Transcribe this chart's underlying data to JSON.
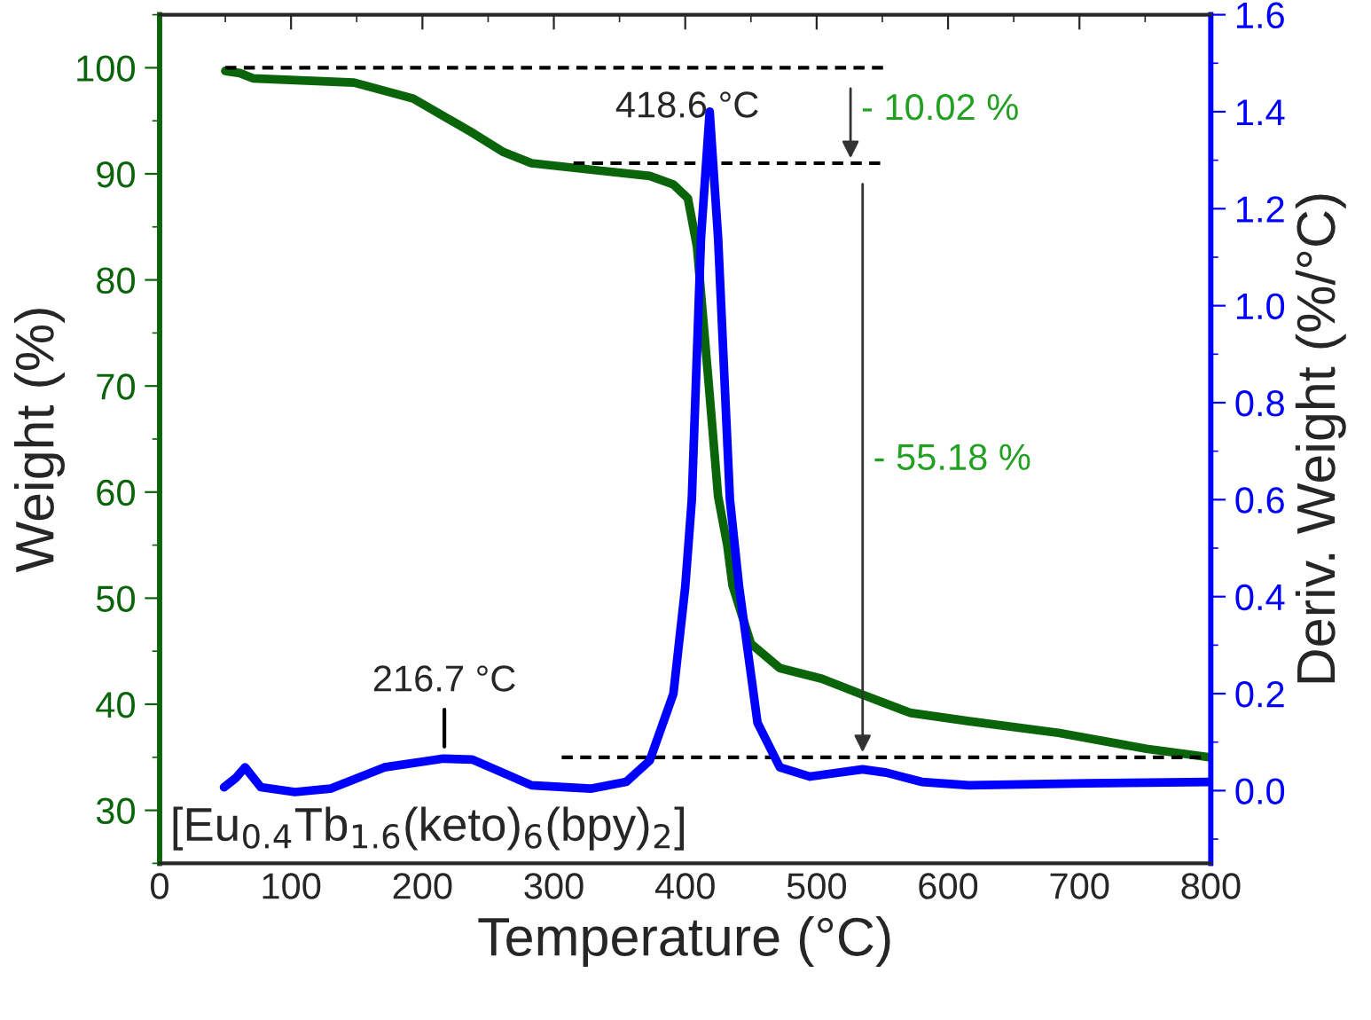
{
  "chart_data": {
    "type": "line",
    "xlabel": "Temperature (°C)",
    "ylabel": "Weight (%)",
    "y2label": "Deriv. Weight (%/°C)",
    "xlim": [
      0,
      800
    ],
    "xticks": [
      0,
      100,
      200,
      300,
      400,
      500,
      600,
      700,
      800
    ],
    "ylim": [
      25,
      105
    ],
    "yticks": [
      30,
      40,
      50,
      60,
      70,
      80,
      90,
      100
    ],
    "y2lim": [
      -0.15,
      1.6
    ],
    "y2ticks": [
      {
        "value": 0,
        "label": "0.0"
      },
      0.2,
      0.4,
      0.6,
      0.8,
      {
        "value": 1,
        "label": "1.0"
      },
      1.2,
      1.4,
      1.6
    ],
    "grid": false,
    "legend": false,
    "marker": "none",
    "series": [
      {
        "color": "#0a640a",
        "line_style": "solid",
        "x": [
          50,
          61,
          71,
          148,
          193,
          239,
          261,
          283,
          328,
          373,
          391,
          402,
          409,
          418,
          425,
          432,
          436,
          450,
          472,
          504,
          535,
          571,
          616,
          684,
          751,
          799
        ],
        "values": [
          99.7,
          99.5,
          99.0,
          98.6,
          97.1,
          93.8,
          92.1,
          91.0,
          90.4,
          89.8,
          89.0,
          87.7,
          83.1,
          70.0,
          59.6,
          55.0,
          51.2,
          45.7,
          43.4,
          42.4,
          40.9,
          39.2,
          38.4,
          37.3,
          35.8,
          35.0
        ]
      },
      {
        "color": "#0000ff",
        "line_style": "solid",
        "axis": "y2",
        "x": [
          49,
          58,
          65,
          77,
          103,
          130,
          171,
          216,
          238,
          261,
          283,
          328,
          355,
          373,
          391,
          400,
          405,
          412,
          418.6,
          425,
          434,
          441,
          455,
          472,
          495,
          535,
          553,
          580,
          616,
          706,
          799
        ],
        "values": [
          0.007,
          0.026,
          0.048,
          0.007,
          -0.003,
          0.004,
          0.048,
          0.066,
          0.064,
          0.037,
          0.011,
          0.004,
          0.018,
          0.062,
          0.2,
          0.42,
          0.6,
          1.14,
          1.4,
          1.14,
          0.6,
          0.42,
          0.14,
          0.048,
          0.029,
          0.044,
          0.037,
          0.018,
          0.011,
          0.015,
          0.018
        ]
      },
      {
        "color": "#000000",
        "line_style": "dashed",
        "x": [
          50,
          553
        ],
        "values": [
          100,
          100
        ]
      },
      {
        "color": "#000000",
        "line_style": "dashed",
        "x": [
          315,
          553
        ],
        "values": [
          91,
          91
        ]
      },
      {
        "color": "#000000",
        "line_style": "dashed",
        "x": [
          306,
          800
        ],
        "values": [
          35,
          35
        ]
      }
    ],
    "annotations": [
      {
        "text": "418.6 °C",
        "x": 418.6,
        "y": 96.1
      },
      {
        "text": "216.7 °C",
        "x": 216.7,
        "y": 35.0
      },
      "- 10.02 %",
      "- 55.18 %",
      "[Eu$_{0.4}$Tb$_{1.6}$(keto)$_{6}$(bpy)$_{2}$]"
    ]
  }
}
